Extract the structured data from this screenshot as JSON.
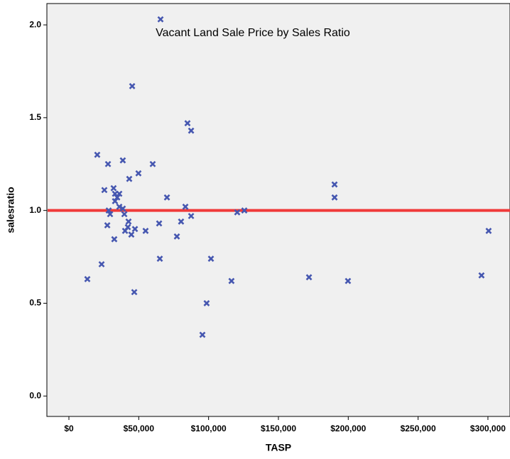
{
  "chart_data": {
    "type": "scatter",
    "title": "Vacant Land Sale Price by Sales Ratio",
    "x_label": "TASP",
    "y_label": "salesratio",
    "color": "#4657b0",
    "xlim": [
      -15770,
      315800
    ],
    "ylim": [
      -0.11,
      2.115
    ],
    "xticks": [
      {
        "value": 0,
        "label": "$0"
      },
      {
        "value": 50000,
        "label": "$50,000"
      },
      {
        "value": 100000,
        "label": "$100,000"
      },
      {
        "value": 150000,
        "label": "$150,000"
      },
      {
        "value": 200000,
        "label": "$200,000"
      },
      {
        "value": 250000,
        "label": "$250,000"
      },
      {
        "value": 300000,
        "label": "$300,000"
      }
    ],
    "yticks": [
      {
        "value": 0,
        "label": "0.0"
      },
      0.5,
      {
        "value": 1,
        "label": "1.0"
      },
      1.5,
      {
        "value": 2,
        "label": "2.0"
      }
    ],
    "reference_line": {
      "value": 1,
      "color": "#f03a3a"
    },
    "x": [
      13200,
      20300,
      23400,
      25400,
      28000,
      27500,
      28500,
      29500,
      32000,
      32500,
      33000,
      33000,
      34600,
      36100,
      36100,
      38600,
      38600,
      39700,
      40200,
      42200,
      42700,
      43200,
      44700,
      45300,
      46800,
      47300,
      49800,
      54900,
      60000,
      64600,
      65100,
      65600,
      70200,
      77300,
      80300,
      83400,
      84900,
      87500,
      87500,
      95600,
      98600,
      101700,
      116400,
      120500,
      125600,
      171900,
      190200,
      190200,
      199800,
      295400,
      300500
    ],
    "values": [
      0.63,
      1.3,
      0.71,
      1.11,
      1.25,
      0.92,
      1.0,
      0.98,
      1.12,
      0.845,
      1.09,
      1.05,
      1.07,
      1.02,
      1.09,
      1.27,
      1.01,
      0.98,
      0.89,
      0.91,
      0.94,
      1.17,
      0.87,
      1.67,
      0.56,
      0.9,
      1.2,
      0.89,
      1.25,
      0.93,
      0.74,
      2.03,
      1.07,
      0.86,
      0.94,
      1.02,
      1.47,
      1.43,
      0.97,
      0.33,
      0.5,
      0.74,
      0.62,
      0.99,
      1.0,
      0.64,
      1.14,
      1.07,
      0.62,
      0.65,
      0.89
    ]
  }
}
